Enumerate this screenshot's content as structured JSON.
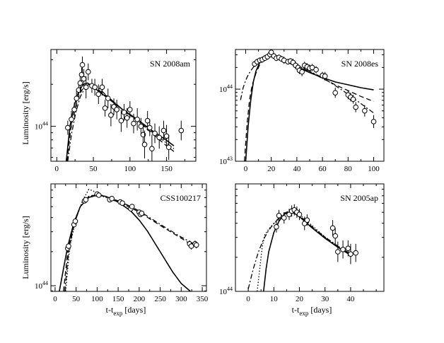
{
  "figure": {
    "ylabel": "Luminosity [erg/s]",
    "xlabel_main": "t-t",
    "xlabel_sub": "exp",
    "xlabel_unit": "[days]"
  },
  "chart_data": [
    {
      "type": "scatter",
      "title": "SN 2008am",
      "xlabel": "",
      "ylabel": "Luminosity [erg/s]",
      "xlim": [
        -8,
        190
      ],
      "ylim_log10": [
        43.75,
        44.55
      ],
      "xticks": [
        0,
        50,
        100,
        150
      ],
      "yticks": [
        {
          "value": 44,
          "label": "10",
          "sup": "44"
        }
      ],
      "points": [
        {
          "x": 15,
          "y": 43.99,
          "e": 0.05
        },
        {
          "x": 20,
          "y": 44.05,
          "e": 0.06
        },
        {
          "x": 24,
          "y": 44.12,
          "e": 0.05
        },
        {
          "x": 27,
          "y": 44.2,
          "e": 0.06
        },
        {
          "x": 30,
          "y": 44.26,
          "e": 0.05
        },
        {
          "x": 32,
          "y": 44.31,
          "e": 0.06
        },
        {
          "x": 34,
          "y": 44.37,
          "e": 0.05
        },
        {
          "x": 35,
          "y": 44.44,
          "e": 0.06
        },
        {
          "x": 37,
          "y": 44.34,
          "e": 0.07
        },
        {
          "x": 40,
          "y": 44.28,
          "e": 0.08
        },
        {
          "x": 43,
          "y": 44.39,
          "e": 0.06
        },
        {
          "x": 48,
          "y": 44.29,
          "e": 0.05
        },
        {
          "x": 52,
          "y": 44.28,
          "e": 0.06
        },
        {
          "x": 57,
          "y": 44.23,
          "e": 0.07
        },
        {
          "x": 62,
          "y": 44.28,
          "e": 0.06
        },
        {
          "x": 66,
          "y": 44.13,
          "e": 0.06
        },
        {
          "x": 70,
          "y": 44.2,
          "e": 0.07
        },
        {
          "x": 74,
          "y": 44.08,
          "e": 0.08
        },
        {
          "x": 78,
          "y": 44.14,
          "e": 0.06
        },
        {
          "x": 82,
          "y": 44.12,
          "e": 0.07
        },
        {
          "x": 88,
          "y": 44.04,
          "e": 0.08
        },
        {
          "x": 92,
          "y": 44.1,
          "e": 0.06
        },
        {
          "x": 96,
          "y": 44.06,
          "e": 0.07
        },
        {
          "x": 100,
          "y": 44.12,
          "e": 0.06
        },
        {
          "x": 105,
          "y": 44.02,
          "e": 0.07
        },
        {
          "x": 110,
          "y": 44.05,
          "e": 0.08
        },
        {
          "x": 115,
          "y": 44.0,
          "e": 0.06
        },
        {
          "x": 118,
          "y": 43.94,
          "e": 0.08
        },
        {
          "x": 120,
          "y": 43.87,
          "e": 0.1
        },
        {
          "x": 124,
          "y": 44.04,
          "e": 0.07
        },
        {
          "x": 127,
          "y": 43.99,
          "e": 0.06
        },
        {
          "x": 130,
          "y": 43.84,
          "e": 0.1
        },
        {
          "x": 134,
          "y": 43.95,
          "e": 0.07
        },
        {
          "x": 140,
          "y": 43.92,
          "e": 0.08
        },
        {
          "x": 146,
          "y": 43.97,
          "e": 0.07
        },
        {
          "x": 150,
          "y": 43.93,
          "e": 0.08
        },
        {
          "x": 153,
          "y": 43.85,
          "e": 0.09
        },
        {
          "x": 170,
          "y": 43.97,
          "e": 0.07
        }
      ],
      "models": [
        {
          "name": "solid",
          "x": [
            13,
            18,
            24,
            30,
            36,
            42,
            50,
            70,
            90,
            110,
            130,
            150,
            160
          ],
          "y": [
            43.75,
            44.0,
            44.15,
            44.25,
            44.3,
            44.31,
            44.28,
            44.2,
            44.12,
            44.05,
            43.97,
            43.9,
            43.86
          ]
        },
        {
          "name": "dash",
          "x": [
            14,
            19,
            25,
            31,
            37,
            44,
            52,
            70,
            90,
            110,
            130,
            150,
            160
          ],
          "y": [
            43.75,
            43.98,
            44.13,
            44.23,
            44.28,
            44.3,
            44.28,
            44.21,
            44.12,
            44.04,
            43.95,
            43.86,
            43.82
          ]
        },
        {
          "name": "dashdot",
          "x": [
            15,
            20,
            26,
            32,
            38,
            45,
            54,
            70,
            90,
            110,
            130,
            150,
            160
          ],
          "y": [
            43.75,
            43.94,
            44.1,
            44.21,
            44.27,
            44.3,
            44.29,
            44.21,
            44.12,
            44.04,
            43.96,
            43.88,
            43.84
          ]
        }
      ]
    },
    {
      "type": "scatter",
      "title": "SN 2008es",
      "xlabel": "",
      "ylabel": "",
      "xlim": [
        -8,
        108
      ],
      "ylim_log10": [
        43.0,
        44.55
      ],
      "xticks": [
        0,
        20,
        40,
        60,
        80,
        100
      ],
      "yticks": [
        {
          "value": 44,
          "label": "10",
          "sup": "44"
        },
        {
          "value": 43,
          "label": "10",
          "sup": "43"
        }
      ],
      "points": [
        {
          "x": 7,
          "y": 44.35,
          "e": 0.04
        },
        {
          "x": 9,
          "y": 44.38,
          "e": 0.04
        },
        {
          "x": 11,
          "y": 44.4,
          "e": 0.04
        },
        {
          "x": 13,
          "y": 44.41,
          "e": 0.04
        },
        {
          "x": 15,
          "y": 44.43,
          "e": 0.04
        },
        {
          "x": 17,
          "y": 44.45,
          "e": 0.04
        },
        {
          "x": 19,
          "y": 44.48,
          "e": 0.04
        },
        {
          "x": 20,
          "y": 44.51,
          "e": 0.04
        },
        {
          "x": 22,
          "y": 44.46,
          "e": 0.04
        },
        {
          "x": 24,
          "y": 44.43,
          "e": 0.04
        },
        {
          "x": 26,
          "y": 44.44,
          "e": 0.04
        },
        {
          "x": 28,
          "y": 44.42,
          "e": 0.04
        },
        {
          "x": 30,
          "y": 44.4,
          "e": 0.05
        },
        {
          "x": 33,
          "y": 44.38,
          "e": 0.04
        },
        {
          "x": 35,
          "y": 44.39,
          "e": 0.04
        },
        {
          "x": 37,
          "y": 44.37,
          "e": 0.05
        },
        {
          "x": 39,
          "y": 44.33,
          "e": 0.05
        },
        {
          "x": 41,
          "y": 44.3,
          "e": 0.05
        },
        {
          "x": 42,
          "y": 44.26,
          "e": 0.05
        },
        {
          "x": 44,
          "y": 44.24,
          "e": 0.06
        },
        {
          "x": 46,
          "y": 44.33,
          "e": 0.05
        },
        {
          "x": 48,
          "y": 44.31,
          "e": 0.05
        },
        {
          "x": 50,
          "y": 44.29,
          "e": 0.05
        },
        {
          "x": 52,
          "y": 44.3,
          "e": 0.05
        },
        {
          "x": 55,
          "y": 44.27,
          "e": 0.05
        },
        {
          "x": 60,
          "y": 44.19,
          "e": 0.05
        },
        {
          "x": 62,
          "y": 44.18,
          "e": 0.06
        },
        {
          "x": 70,
          "y": 43.95,
          "e": 0.07
        },
        {
          "x": 80,
          "y": 43.92,
          "e": 0.06
        },
        {
          "x": 82,
          "y": 43.89,
          "e": 0.06
        },
        {
          "x": 84,
          "y": 43.86,
          "e": 0.06
        },
        {
          "x": 86,
          "y": 43.75,
          "e": 0.07
        },
        {
          "x": 93,
          "y": 43.7,
          "e": 0.08
        },
        {
          "x": 100,
          "y": 43.55,
          "e": 0.09
        }
      ],
      "models": [
        {
          "name": "solid",
          "x": [
            0,
            2,
            4,
            6,
            8,
            11,
            15,
            20,
            25,
            30,
            40,
            50,
            60,
            70,
            80,
            90,
            100
          ],
          "y": [
            43.0,
            43.5,
            43.85,
            44.1,
            44.25,
            44.37,
            44.44,
            44.46,
            44.44,
            44.4,
            44.31,
            44.23,
            44.16,
            44.1,
            44.06,
            44.02,
            43.99
          ]
        },
        {
          "name": "dash",
          "x": [
            -1,
            1,
            3,
            5,
            8,
            11,
            15,
            20,
            25,
            30,
            40,
            50,
            60,
            70,
            80,
            90,
            100
          ],
          "y": [
            43.0,
            43.5,
            43.85,
            44.05,
            44.22,
            44.34,
            44.43,
            44.46,
            44.44,
            44.41,
            44.33,
            44.24,
            44.15,
            44.06,
            43.98,
            43.9,
            43.83
          ]
        },
        {
          "name": "dashdot",
          "x": [
            -4,
            -2,
            0,
            2,
            5,
            8,
            12,
            16,
            20,
            25,
            30,
            40,
            50,
            60,
            70,
            80,
            90,
            100
          ],
          "y": [
            43.85,
            44.02,
            44.12,
            44.2,
            44.28,
            44.35,
            44.41,
            44.44,
            44.45,
            44.44,
            44.41,
            44.33,
            44.25,
            44.16,
            44.05,
            43.93,
            43.8,
            43.67
          ]
        }
      ]
    },
    {
      "type": "scatter",
      "title": "CSS100217",
      "xlabel": "t-t_exp [days]",
      "ylabel": "Luminosity [erg/s]",
      "xlim": [
        -10,
        360
      ],
      "ylim_log10": [
        43.95,
        44.9
      ],
      "xticks": [
        0,
        50,
        100,
        150,
        200,
        250,
        300,
        350
      ],
      "yticks": [
        {
          "value": 44,
          "label": "10",
          "sup": "44"
        }
      ],
      "points": [
        {
          "x": 30,
          "y": 44.33,
          "e": 0.03
        },
        {
          "x": 32,
          "y": 44.35,
          "e": 0.03
        },
        {
          "x": 45,
          "y": 44.54,
          "e": 0.03
        },
        {
          "x": 48,
          "y": 44.57,
          "e": 0.03
        },
        {
          "x": 70,
          "y": 44.75,
          "e": 0.02
        },
        {
          "x": 73,
          "y": 44.76,
          "e": 0.02
        },
        {
          "x": 100,
          "y": 44.81,
          "e": 0.02
        },
        {
          "x": 104,
          "y": 44.8,
          "e": 0.02
        },
        {
          "x": 130,
          "y": 44.76,
          "e": 0.02
        },
        {
          "x": 135,
          "y": 44.77,
          "e": 0.02
        },
        {
          "x": 155,
          "y": 44.74,
          "e": 0.02
        },
        {
          "x": 160,
          "y": 44.73,
          "e": 0.02
        },
        {
          "x": 180,
          "y": 44.68,
          "e": 0.02
        },
        {
          "x": 183,
          "y": 44.7,
          "e": 0.02
        },
        {
          "x": 200,
          "y": 44.65,
          "e": 0.02
        },
        {
          "x": 203,
          "y": 44.63,
          "e": 0.02
        },
        {
          "x": 206,
          "y": 44.64,
          "e": 0.02
        },
        {
          "x": 320,
          "y": 44.37,
          "e": 0.03
        },
        {
          "x": 324,
          "y": 44.35,
          "e": 0.03
        },
        {
          "x": 333,
          "y": 44.37,
          "e": 0.03
        },
        {
          "x": 336,
          "y": 44.36,
          "e": 0.03
        }
      ],
      "models": [
        {
          "name": "solid",
          "x": [
            10,
            20,
            30,
            45,
            60,
            80,
            100,
            120,
            150,
            180,
            200,
            220,
            250,
            280,
            300,
            322
          ],
          "y": [
            43.95,
            44.15,
            44.35,
            44.56,
            44.7,
            44.78,
            44.8,
            44.79,
            44.74,
            44.66,
            44.58,
            44.48,
            44.3,
            44.12,
            44.02,
            43.95
          ]
        },
        {
          "name": "dash",
          "x": [
            20,
            30,
            45,
            60,
            80,
            100,
            120,
            150,
            180,
            200,
            230,
            260,
            300,
            330
          ],
          "y": [
            43.95,
            44.3,
            44.55,
            44.7,
            44.78,
            44.81,
            44.79,
            44.74,
            44.69,
            44.65,
            44.58,
            44.51,
            44.42,
            44.35
          ]
        },
        {
          "name": "dashdot",
          "x": [
            23,
            32,
            45,
            60,
            80,
            100,
            120,
            150,
            180,
            200,
            230,
            260,
            300,
            330
          ],
          "y": [
            43.95,
            44.3,
            44.54,
            44.7,
            44.79,
            44.81,
            44.79,
            44.75,
            44.7,
            44.66,
            44.59,
            44.52,
            44.43,
            44.37
          ]
        },
        {
          "name": "dot",
          "x": [
            25,
            35,
            50,
            65,
            80,
            90,
            100,
            120,
            150,
            180,
            200
          ],
          "y": [
            43.95,
            44.35,
            44.6,
            44.75,
            44.85,
            44.84,
            44.81,
            44.78,
            44.74,
            44.69,
            44.65
          ]
        }
      ]
    },
    {
      "type": "scatter",
      "title": "SN 2005ap",
      "xlabel": "t-t_exp [days]",
      "ylabel": "",
      "xlim": [
        -5,
        53
      ],
      "ylim_log10": [
        44.0,
        44.95
      ],
      "xticks": [
        0,
        10,
        20,
        30,
        40
      ],
      "yticks": [
        {
          "value": 44,
          "label": "10",
          "sup": "44"
        }
      ],
      "points": [
        {
          "x": 11,
          "y": 44.57,
          "e": 0.05
        },
        {
          "x": 12,
          "y": 44.67,
          "e": 0.05
        },
        {
          "x": 14,
          "y": 44.65,
          "e": 0.05
        },
        {
          "x": 16,
          "y": 44.68,
          "e": 0.05
        },
        {
          "x": 17,
          "y": 44.71,
          "e": 0.05
        },
        {
          "x": 18,
          "y": 44.72,
          "e": 0.05
        },
        {
          "x": 19,
          "y": 44.7,
          "e": 0.05
        },
        {
          "x": 20,
          "y": 44.68,
          "e": 0.05
        },
        {
          "x": 22,
          "y": 44.6,
          "e": 0.06
        },
        {
          "x": 23,
          "y": 44.63,
          "e": 0.05
        },
        {
          "x": 33,
          "y": 44.56,
          "e": 0.07
        },
        {
          "x": 34,
          "y": 44.49,
          "e": 0.07
        },
        {
          "x": 35,
          "y": 44.35,
          "e": 0.09
        },
        {
          "x": 37,
          "y": 44.37,
          "e": 0.08
        },
        {
          "x": 39,
          "y": 44.38,
          "e": 0.07
        },
        {
          "x": 40,
          "y": 44.33,
          "e": 0.09
        },
        {
          "x": 42,
          "y": 44.34,
          "e": 0.08
        }
      ],
      "models": [
        {
          "name": "solid",
          "x": [
            6,
            7,
            8,
            10,
            12,
            14,
            16,
            18,
            20,
            25,
            30,
            35,
            40
          ],
          "y": [
            44.0,
            44.2,
            44.35,
            44.52,
            44.62,
            44.68,
            44.7,
            44.69,
            44.66,
            44.56,
            44.47,
            44.39,
            44.32
          ]
        },
        {
          "name": "dashdot",
          "x": [
            0,
            2,
            4,
            6,
            8,
            10,
            12,
            14,
            16,
            18,
            20,
            25,
            30,
            35,
            40
          ],
          "y": [
            44.02,
            44.2,
            44.35,
            44.46,
            44.54,
            44.6,
            44.65,
            44.69,
            44.71,
            44.7,
            44.67,
            44.57,
            44.48,
            44.4,
            44.33
          ]
        },
        {
          "name": "dot",
          "x": [
            3.5,
            4.5,
            5.5,
            6.5,
            8,
            10,
            12,
            14,
            16,
            18,
            20,
            25,
            30,
            35,
            40
          ],
          "y": [
            44.0,
            44.2,
            44.4,
            44.5,
            44.55,
            44.6,
            44.64,
            44.68,
            44.7,
            44.7,
            44.68,
            44.58,
            44.48,
            44.4,
            44.33
          ]
        }
      ]
    }
  ]
}
